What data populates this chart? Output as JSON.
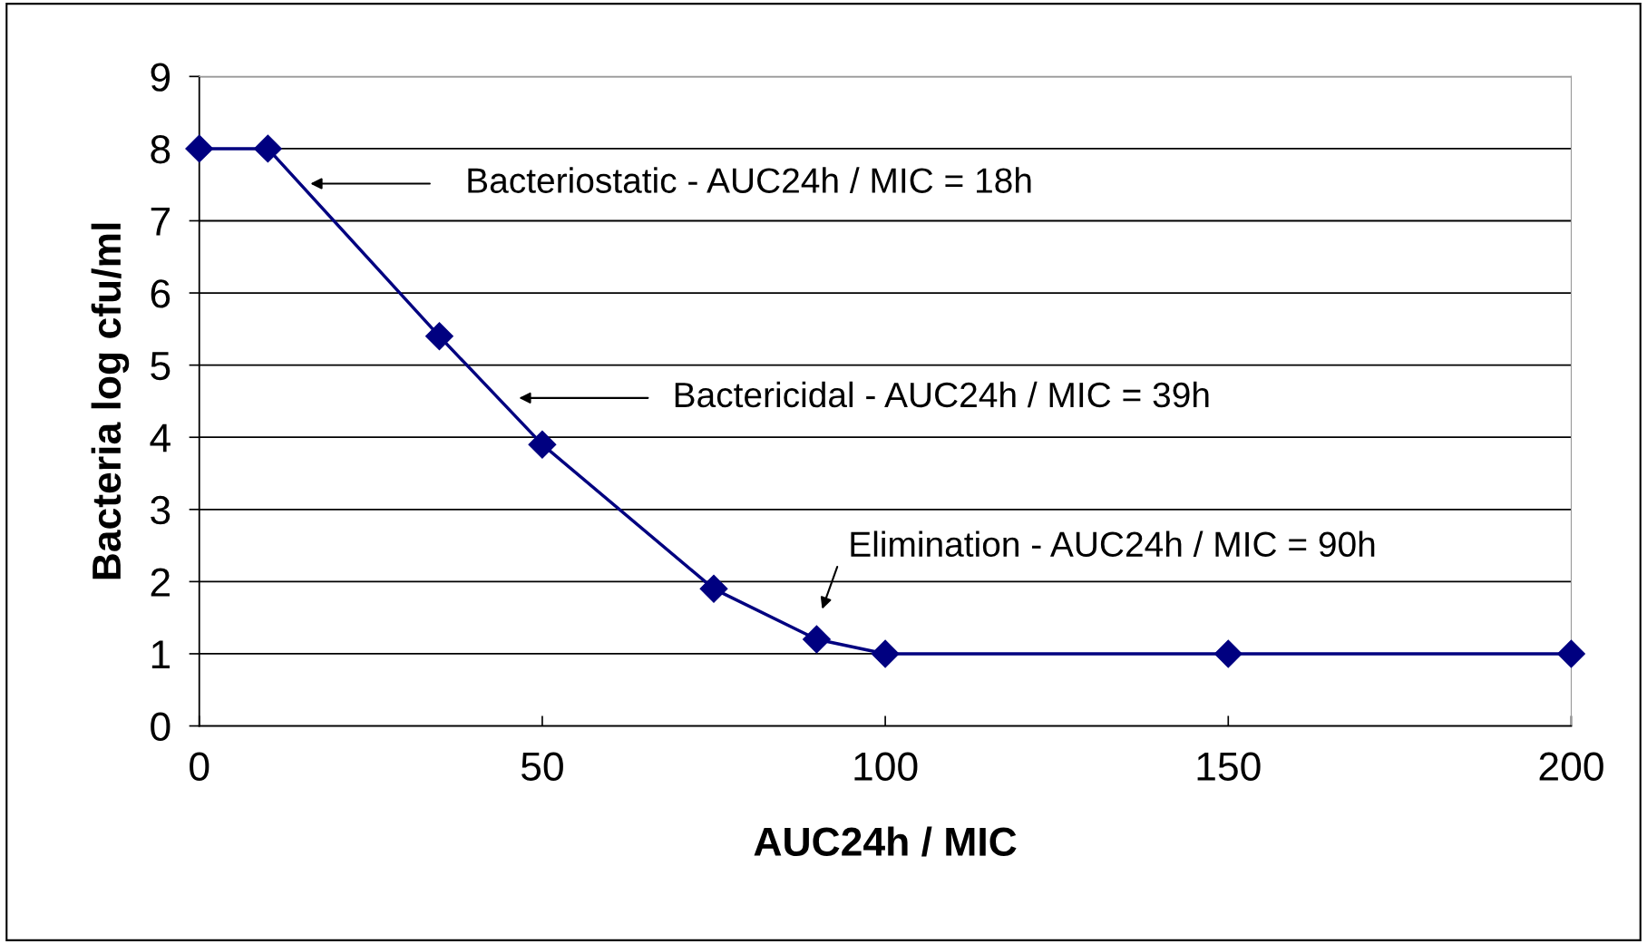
{
  "chart_data": {
    "type": "line",
    "xlabel": "AUC24h / MIC",
    "ylabel": "Bacteria log cfu/ml",
    "x": [
      0,
      10,
      35,
      50,
      75,
      90,
      100,
      150,
      200
    ],
    "series": [
      {
        "color": "#000080",
        "values": [
          8,
          8,
          5.4,
          3.9,
          1.9,
          1.2,
          1,
          1,
          1
        ]
      }
    ],
    "xlim": [
      0,
      200
    ],
    "xticks": [
      0,
      50,
      100,
      150,
      200
    ],
    "ylim": [
      0,
      9
    ],
    "yticks": [
      0,
      1,
      2,
      3,
      4,
      5,
      6,
      7,
      8,
      9
    ],
    "grid": "y",
    "marker": "diamond",
    "line_style": "solid",
    "legend": false,
    "annotations": [
      "Bacteriostatic - AUC24h / MIC = 18h",
      "Bactericidal - AUC24h / MIC = 39h",
      "Elimination - AUC24h / MIC = 90h"
    ]
  }
}
